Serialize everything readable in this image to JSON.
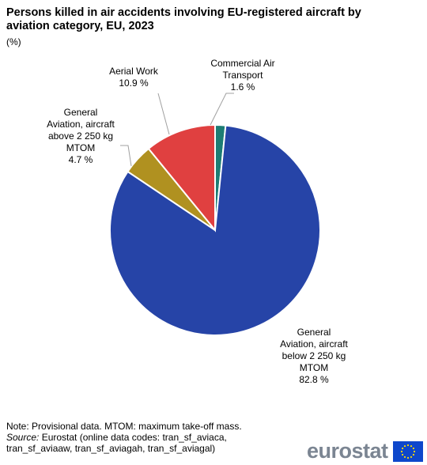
{
  "title": "Persons killed in air accidents involving EU-registered aircraft by aviation category, EU, 2023",
  "unit": "(%)",
  "chart_data": {
    "type": "pie",
    "title": "Persons killed in air accidents involving EU-registered aircraft by aviation category, EU, 2023",
    "slices": [
      {
        "label": "Commercial Air Transport",
        "display_lines": [
          "Commercial Air",
          "Transport",
          "1.6 %"
        ],
        "value": 1.6,
        "color": "#1d7d74"
      },
      {
        "label": "General Aviation, aircraft below 2 250 kg MTOM",
        "display_lines": [
          "General",
          "Aviation, aircraft",
          "below 2 250 kg",
          "MTOM",
          "82.8 %"
        ],
        "value": 82.8,
        "color": "#2644a7"
      },
      {
        "label": "General Aviation, aircraft above 2 250 kg MTOM",
        "display_lines": [
          "General",
          "Aviation, aircraft",
          "above 2 250 kg",
          "MTOM",
          "4.7 %"
        ],
        "value": 4.7,
        "color": "#b09120"
      },
      {
        "label": "Aerial Work",
        "display_lines": [
          "Aerial Work",
          "10.9 %"
        ],
        "value": 10.9,
        "color": "#e04040"
      }
    ]
  },
  "footer": {
    "note": "Note: Provisional data. MTOM: maximum take-off mass.",
    "source_label": "Source:",
    "source_text": " Eurostat (online data codes: tran_sf_aviaca, tran_sf_aviaaw, tran_sf_aviagah, tran_sf_aviagal)"
  },
  "logo": {
    "text": "eurostat",
    "flag_icon": "eu-flag-icon"
  }
}
